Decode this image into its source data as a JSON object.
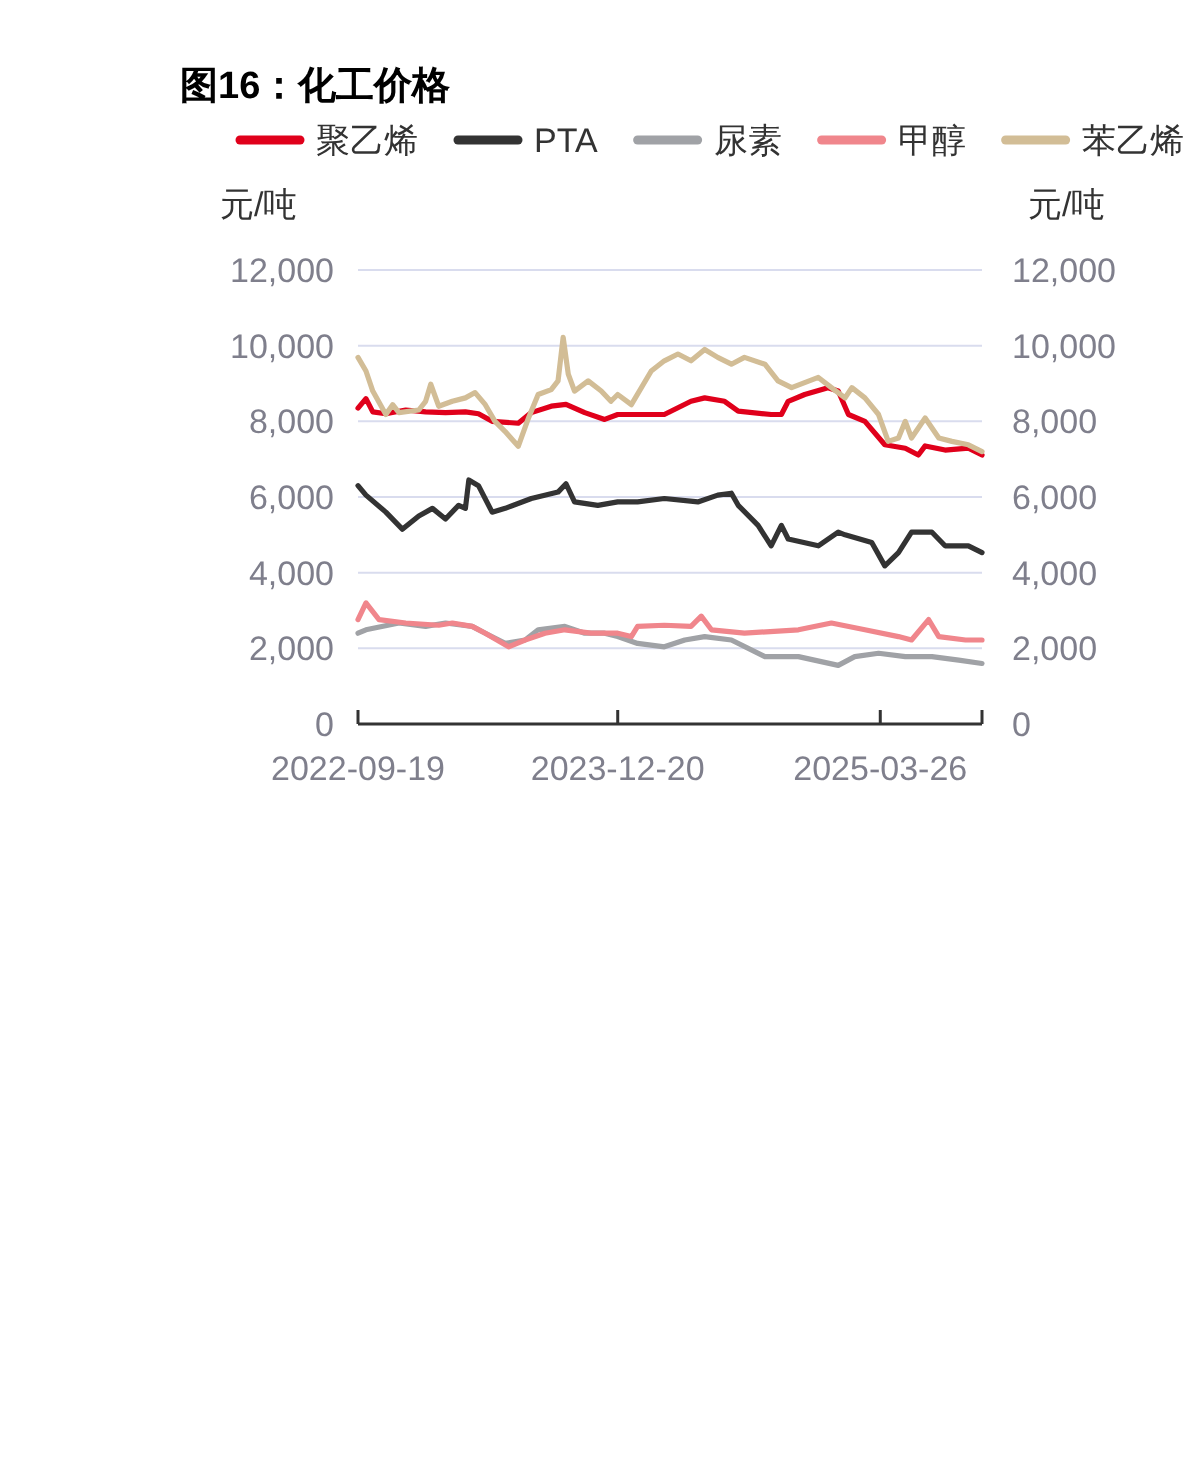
{
  "chart_data": {
    "type": "line",
    "title": "图16：化工价格",
    "ylabel": "元/吨",
    "y2label": "元/吨",
    "legend": "top",
    "grid": "y",
    "marker": "none",
    "line_style": "solid",
    "xlim": [
      "2022-09-19",
      "2025-09-21"
    ],
    "xticks": [
      "2022-09-19",
      "2023-12-20",
      "2025-03-26"
    ],
    "ylim": [
      0,
      12000
    ],
    "yticks": [
      0,
      {
        "value": 2000,
        "label": "2,000"
      },
      {
        "value": 4000,
        "label": "4,000"
      },
      {
        "value": 6000,
        "label": "6,000"
      },
      {
        "value": 8000,
        "label": "8,000"
      },
      {
        "value": 10000,
        "label": "10,000"
      },
      {
        "value": 12000,
        "label": "12,000"
      }
    ],
    "y2lim": [
      0,
      12000
    ],
    "y2ticks": [
      0,
      {
        "value": 2000,
        "label": "2,000"
      },
      {
        "value": 4000,
        "label": "4,000"
      },
      {
        "value": 6000,
        "label": "6,000"
      },
      {
        "value": 8000,
        "label": "8,000"
      },
      {
        "value": 10000,
        "label": "10,000"
      },
      {
        "value": 12000,
        "label": "12,000"
      }
    ],
    "series": [
      {
        "name": "聚乙烯",
        "color": "#e0001b",
        "x": [
          "2022-09-19",
          "2022-10-03",
          "2022-10-15",
          "2022-11-07",
          "2022-12-12",
          "2023-01-16",
          "2023-02-20",
          "2023-03-27",
          "2023-04-19",
          "2023-05-13",
          "2023-06-28",
          "2023-07-21",
          "2023-08-25",
          "2023-09-20",
          "2023-10-23",
          "2023-11-27",
          "2023-12-20",
          "2024-01-24",
          "2024-03-11",
          "2024-04-27",
          "2024-05-21",
          "2024-06-25",
          "2024-07-19",
          "2024-09-15",
          "2024-10-03",
          "2024-10-15",
          "2024-11-13",
          "2024-12-24",
          "2025-01-11",
          "2025-01-29",
          "2025-02-27",
          "2025-04-03",
          "2025-05-09",
          "2025-06-01",
          "2025-06-13",
          "2025-07-18",
          "2025-08-28",
          "2025-09-21"
        ],
        "values": [
          8350,
          8600,
          8250,
          8200,
          8300,
          8250,
          8230,
          8250,
          8200,
          8000,
          7950,
          8230,
          8400,
          8450,
          8230,
          8050,
          8180,
          8180,
          8180,
          8530,
          8620,
          8530,
          8270,
          8180,
          8180,
          8530,
          8710,
          8890,
          8800,
          8180,
          8000,
          7380,
          7290,
          7110,
          7350,
          7240,
          7290,
          7110
        ]
      },
      {
        "name": "PTA",
        "color": "#333333",
        "x": [
          "2022-09-19",
          "2022-10-03",
          "2022-11-07",
          "2022-12-06",
          "2023-01-04",
          "2023-01-28",
          "2023-02-20",
          "2023-03-15",
          "2023-03-27",
          "2023-04-02",
          "2023-04-19",
          "2023-05-13",
          "2023-06-05",
          "2023-07-21",
          "2023-09-06",
          "2023-09-20",
          "2023-10-05",
          "2023-11-15",
          "2023-12-20",
          "2024-01-24",
          "2024-03-11",
          "2024-05-09",
          "2024-06-13",
          "2024-07-07",
          "2024-07-19",
          "2024-08-23",
          "2024-09-15",
          "2024-10-03",
          "2024-10-15",
          "2024-12-07",
          "2025-01-11",
          "2025-01-23",
          "2025-03-11",
          "2025-04-03",
          "2025-04-27",
          "2025-05-20",
          "2025-06-25",
          "2025-07-18",
          "2025-08-28",
          "2025-09-21"
        ],
        "values": [
          6300,
          6050,
          5600,
          5150,
          5500,
          5700,
          5420,
          5780,
          5700,
          6450,
          6300,
          5600,
          5700,
          5960,
          6130,
          6350,
          5870,
          5780,
          5870,
          5870,
          5960,
          5870,
          6050,
          6100,
          5780,
          5250,
          4710,
          5250,
          4890,
          4710,
          5070,
          5000,
          4800,
          4180,
          4530,
          5070,
          5070,
          4710,
          4710,
          4530
        ]
      },
      {
        "name": "尿素",
        "color": "#a0a2a6",
        "x": [
          "2022-09-19",
          "2022-10-03",
          "2022-11-30",
          "2023-01-16",
          "2023-02-20",
          "2023-04-08",
          "2023-05-01",
          "2023-06-05",
          "2023-07-10",
          "2023-08-02",
          "2023-09-18",
          "2023-10-23",
          "2023-11-27",
          "2023-12-20",
          "2024-01-24",
          "2024-03-11",
          "2024-04-16",
          "2024-05-21",
          "2024-07-07",
          "2024-09-04",
          "2024-11-02",
          "2025-01-11",
          "2025-02-09",
          "2025-03-23",
          "2025-05-09",
          "2025-06-25",
          "2025-08-11",
          "2025-09-21"
        ],
        "values": [
          2400,
          2490,
          2670,
          2580,
          2670,
          2580,
          2400,
          2130,
          2220,
          2490,
          2580,
          2400,
          2400,
          2310,
          2130,
          2040,
          2220,
          2310,
          2220,
          1780,
          1780,
          1550,
          1780,
          1870,
          1780,
          1780,
          1690,
          1600
        ]
      },
      {
        "name": "甲醇",
        "color": "#f0868c",
        "x": [
          "2022-09-19",
          "2022-10-03",
          "2022-10-26",
          "2022-12-12",
          "2023-02-08",
          "2023-03-04",
          "2023-04-08",
          "2023-05-01",
          "2023-06-11",
          "2023-07-10",
          "2023-08-14",
          "2023-09-18",
          "2023-11-03",
          "2023-12-20",
          "2024-01-13",
          "2024-01-24",
          "2024-03-11",
          "2024-04-27",
          "2024-05-15",
          "2024-06-02",
          "2024-07-30",
          "2024-11-02",
          "2024-12-30",
          "2025-02-27",
          "2025-04-27",
          "2025-05-20",
          "2025-06-19",
          "2025-07-07",
          "2025-08-23",
          "2025-09-21"
        ],
        "values": [
          2760,
          3200,
          2760,
          2670,
          2610,
          2670,
          2580,
          2400,
          2040,
          2220,
          2400,
          2490,
          2400,
          2400,
          2310,
          2580,
          2610,
          2580,
          2850,
          2490,
          2400,
          2490,
          2670,
          2490,
          2310,
          2220,
          2760,
          2310,
          2220,
          2220
        ]
      },
      {
        "name": "苯乙烯",
        "color": "#d2bd96",
        "x": [
          "2022-09-19",
          "2022-10-03",
          "2022-10-15",
          "2022-11-07",
          "2022-11-19",
          "2022-11-30",
          "2023-01-04",
          "2023-01-16",
          "2023-01-25",
          "2023-02-08",
          "2023-03-04",
          "2023-03-27",
          "2023-04-13",
          "2023-05-01",
          "2023-05-18",
          "2023-06-05",
          "2023-06-28",
          "2023-07-16",
          "2023-08-02",
          "2023-08-25",
          "2023-09-06",
          "2023-09-15",
          "2023-09-24",
          "2023-10-05",
          "2023-10-29",
          "2023-11-21",
          "2023-12-08",
          "2023-12-20",
          "2024-01-13",
          "2024-02-17",
          "2024-03-11",
          "2024-04-04",
          "2024-04-27",
          "2024-05-21",
          "2024-06-13",
          "2024-07-07",
          "2024-07-30",
          "2024-09-04",
          "2024-09-27",
          "2024-10-21",
          "2024-12-07",
          "2024-12-30",
          "2025-01-23",
          "2025-02-04",
          "2025-02-27",
          "2025-03-23",
          "2025-04-09",
          "2025-04-27",
          "2025-05-09",
          "2025-05-20",
          "2025-06-13",
          "2025-07-07",
          "2025-07-30",
          "2025-08-28",
          "2025-09-21"
        ],
        "values": [
          9690,
          9330,
          8800,
          8180,
          8440,
          8230,
          8300,
          8530,
          8980,
          8400,
          8530,
          8620,
          8760,
          8440,
          8000,
          7730,
          7340,
          8090,
          8710,
          8840,
          9070,
          10220,
          9250,
          8800,
          9070,
          8800,
          8530,
          8710,
          8440,
          9330,
          9600,
          9780,
          9600,
          9900,
          9690,
          9510,
          9690,
          9510,
          9070,
          8890,
          9160,
          8890,
          8620,
          8890,
          8620,
          8180,
          7470,
          7560,
          8000,
          7560,
          8090,
          7560,
          7470,
          7380,
          7200
        ]
      }
    ]
  }
}
